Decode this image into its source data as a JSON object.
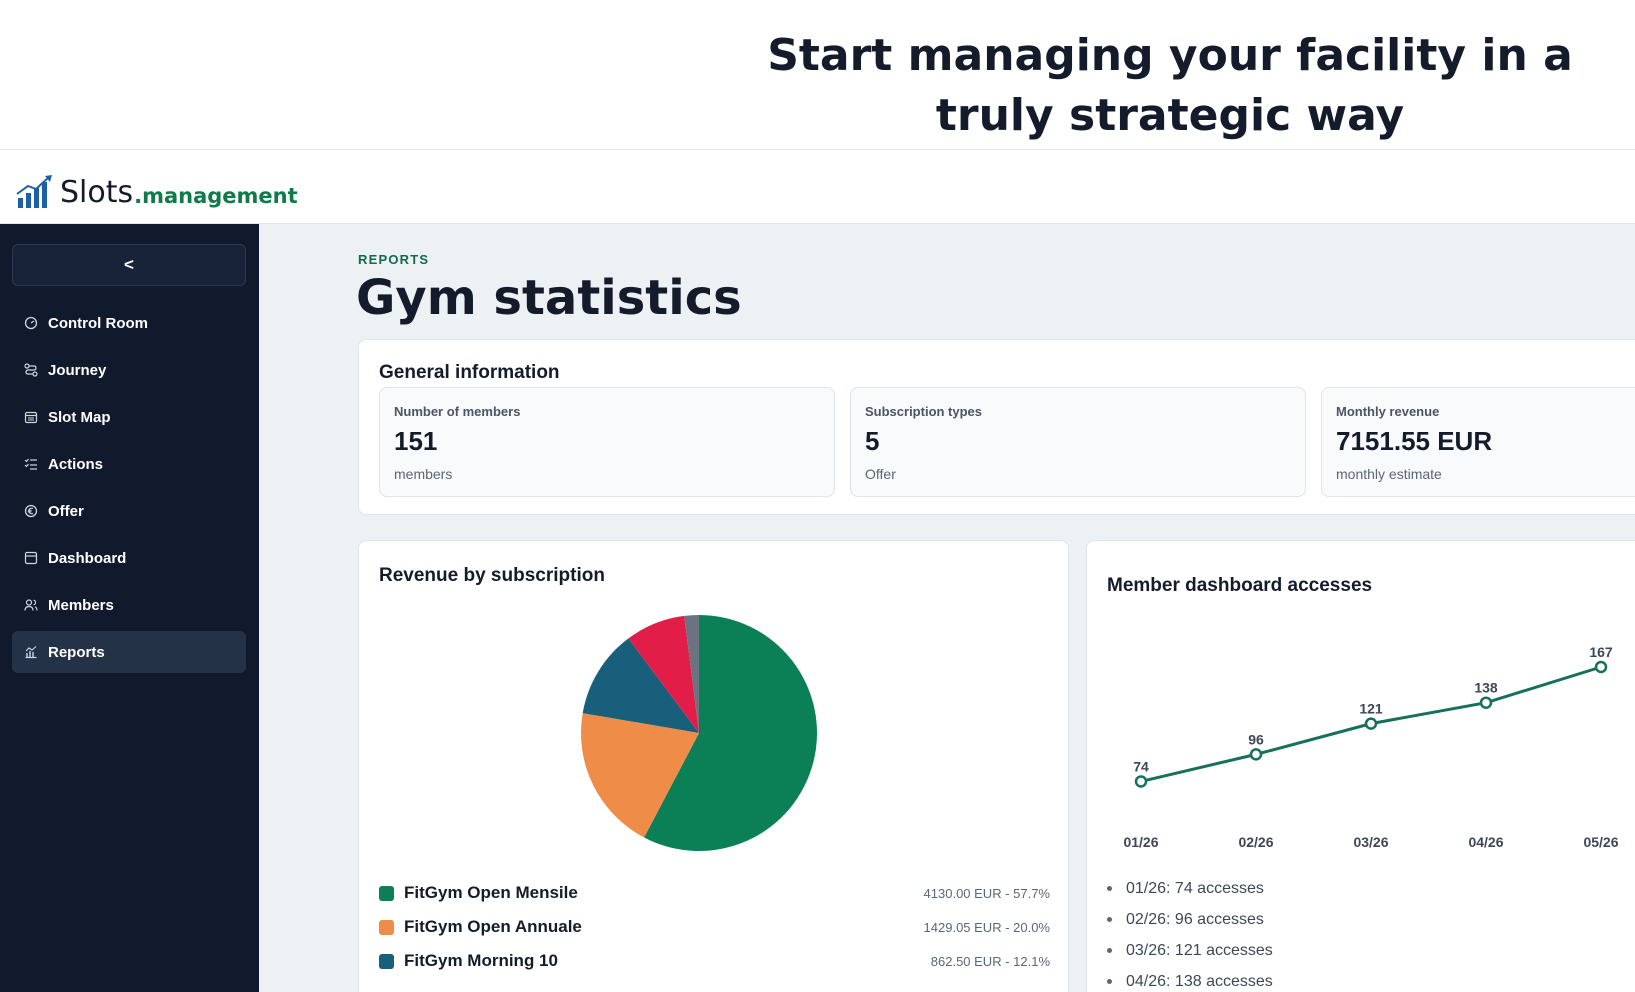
{
  "hero": {
    "title": "Start managing your facility in a truly strategic way"
  },
  "brand": {
    "name_a": "Slots",
    "name_b": ".management"
  },
  "sidebar": {
    "collapse_label": "<",
    "items": [
      {
        "label": "Control Room",
        "icon": "gauge-icon"
      },
      {
        "label": "Journey",
        "icon": "route-icon"
      },
      {
        "label": "Slot Map",
        "icon": "calendar-icon"
      },
      {
        "label": "Actions",
        "icon": "checklist-icon"
      },
      {
        "label": "Offer",
        "icon": "euro-icon"
      },
      {
        "label": "Dashboard",
        "icon": "panel-icon"
      },
      {
        "label": "Members",
        "icon": "users-icon"
      },
      {
        "label": "Reports",
        "icon": "chart-icon",
        "active": true
      }
    ]
  },
  "page": {
    "eyebrow": "REPORTS",
    "title": "Gym statistics"
  },
  "general": {
    "title": "General information",
    "stats": [
      {
        "label": "Number of members",
        "value": "151",
        "sub": "members"
      },
      {
        "label": "Subscription types",
        "value": "5",
        "sub": "Offer"
      },
      {
        "label": "Monthly revenue",
        "value": "7151.55 EUR",
        "sub": "monthly estimate"
      }
    ]
  },
  "revenue": {
    "title": "Revenue by subscription",
    "legend": [
      {
        "name": "FitGym Open Mensile",
        "value": "4130.00 EUR - 57.7%",
        "color": "#0b8057"
      },
      {
        "name": "FitGym Open Annuale",
        "value": "1429.05 EUR - 20.0%",
        "color": "#ef8c47"
      },
      {
        "name": "FitGym Morning 10",
        "value": "862.50 EUR - 12.1%",
        "color": "#175f7a"
      }
    ]
  },
  "accesses": {
    "title": "Member dashboard accesses",
    "list": [
      "01/26: 74 accesses",
      "02/26: 96 accesses",
      "03/26: 121 accesses",
      "04/26: 138 accesses"
    ]
  },
  "chart_data": [
    {
      "type": "pie",
      "title": "Revenue by subscription",
      "slices": [
        {
          "label": "FitGym Open Mensile",
          "value": 57.7,
          "color": "#0b8057"
        },
        {
          "label": "FitGym Open Annuale",
          "value": 20.0,
          "color": "#ef8c47"
        },
        {
          "label": "FitGym Morning 10",
          "value": 12.1,
          "color": "#175f7a"
        },
        {
          "value": 8.2,
          "color": "#e21d48"
        },
        {
          "value": 2.0,
          "color": "#6b7280"
        }
      ]
    },
    {
      "type": "line",
      "title": "Member dashboard accesses",
      "x": [
        "01/26",
        "02/26",
        "03/26",
        "04/26",
        "05/26"
      ],
      "y": [
        74,
        96,
        121,
        138,
        167
      ],
      "color": "#17705a"
    }
  ]
}
